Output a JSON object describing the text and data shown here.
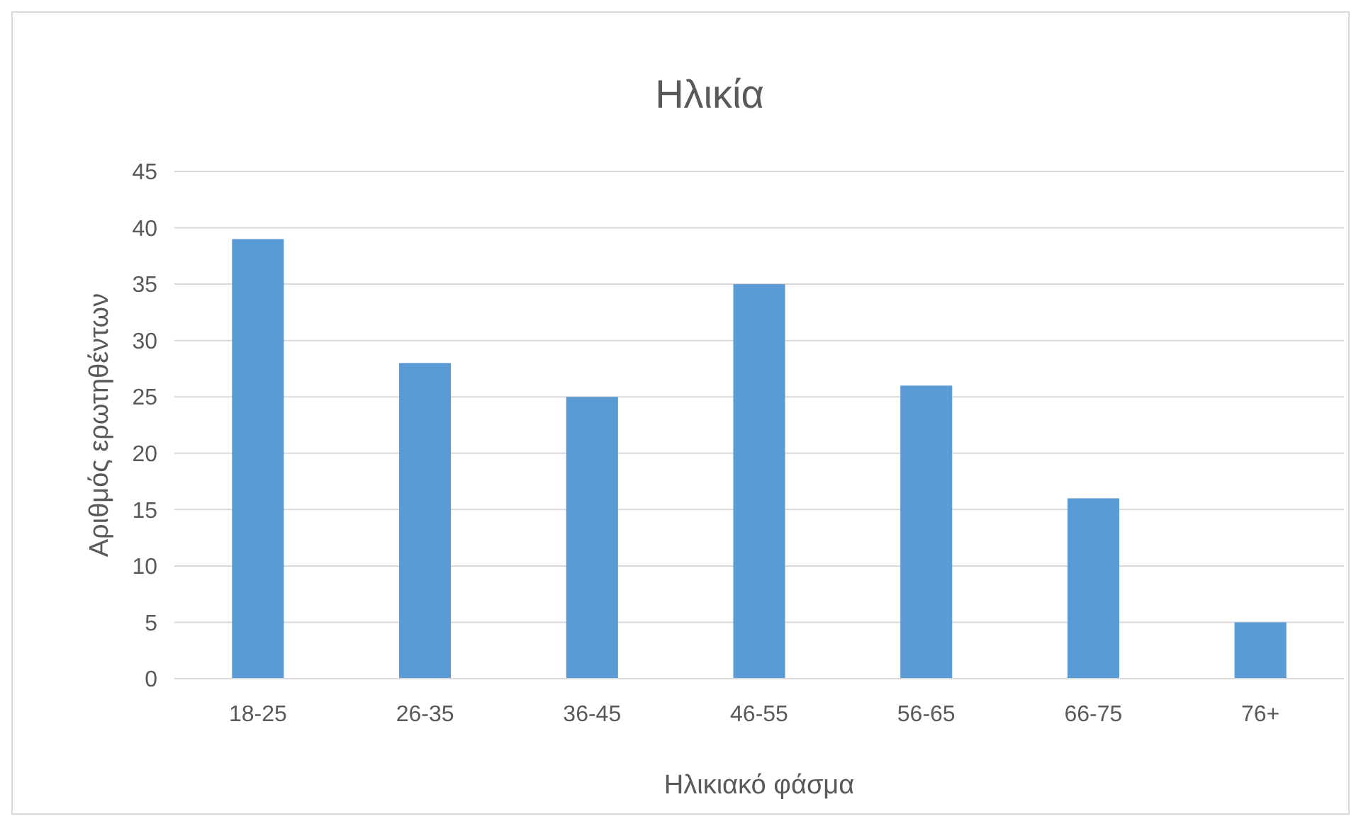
{
  "chart_data": {
    "type": "bar",
    "title": "Ηλικία",
    "xlabel": "Ηλικιακό φάσμα",
    "ylabel": "Αριθμός ερωτηθέντων",
    "categories": [
      "18-25",
      "26-35",
      "36-45",
      "46-55",
      "56-65",
      "66-75",
      "76+"
    ],
    "values": [
      39,
      28,
      25,
      35,
      26,
      16,
      5
    ],
    "color": "#5b9bd5",
    "ylim": [
      0,
      45
    ],
    "yticks": [
      0,
      5,
      10,
      15,
      20,
      25,
      30,
      35,
      40,
      45
    ],
    "grid": "y"
  }
}
